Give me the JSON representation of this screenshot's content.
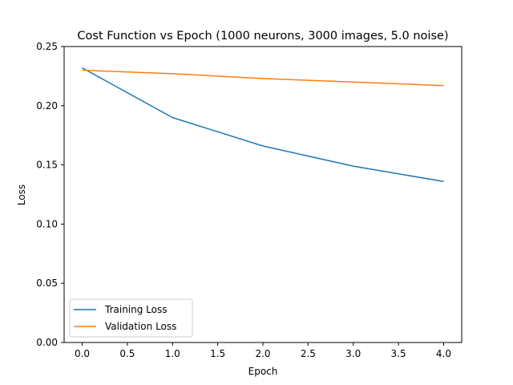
{
  "chart_data": {
    "type": "line",
    "title": "Cost Function vs Epoch (1000 neurons, 3000 images, 5.0 noise)",
    "xlabel": "Epoch",
    "ylabel": "Loss",
    "xlim": [
      -0.2,
      4.2
    ],
    "ylim": [
      0,
      0.25
    ],
    "xticks": [
      0.0,
      0.5,
      1.0,
      1.5,
      2.0,
      2.5,
      3.0,
      3.5,
      4.0
    ],
    "xtick_labels": [
      "0.0",
      "0.5",
      "1.0",
      "1.5",
      "2.0",
      "2.5",
      "3.0",
      "3.5",
      "4.0"
    ],
    "yticks": [
      0.0,
      0.05,
      0.1,
      0.15,
      0.2,
      0.25
    ],
    "ytick_labels": [
      "0.00",
      "0.05",
      "0.10",
      "0.15",
      "0.20",
      "0.25"
    ],
    "grid": false,
    "legend_position": "lower-left",
    "x": [
      0,
      1,
      2,
      3,
      4
    ],
    "series": [
      {
        "name": "Training Loss",
        "color": "#1f77b4",
        "values": [
          0.232,
          0.19,
          0.166,
          0.149,
          0.136
        ]
      },
      {
        "name": "Validation Loss",
        "color": "#ff7f0e",
        "values": [
          0.23,
          0.227,
          0.223,
          0.22,
          0.217
        ]
      }
    ]
  }
}
